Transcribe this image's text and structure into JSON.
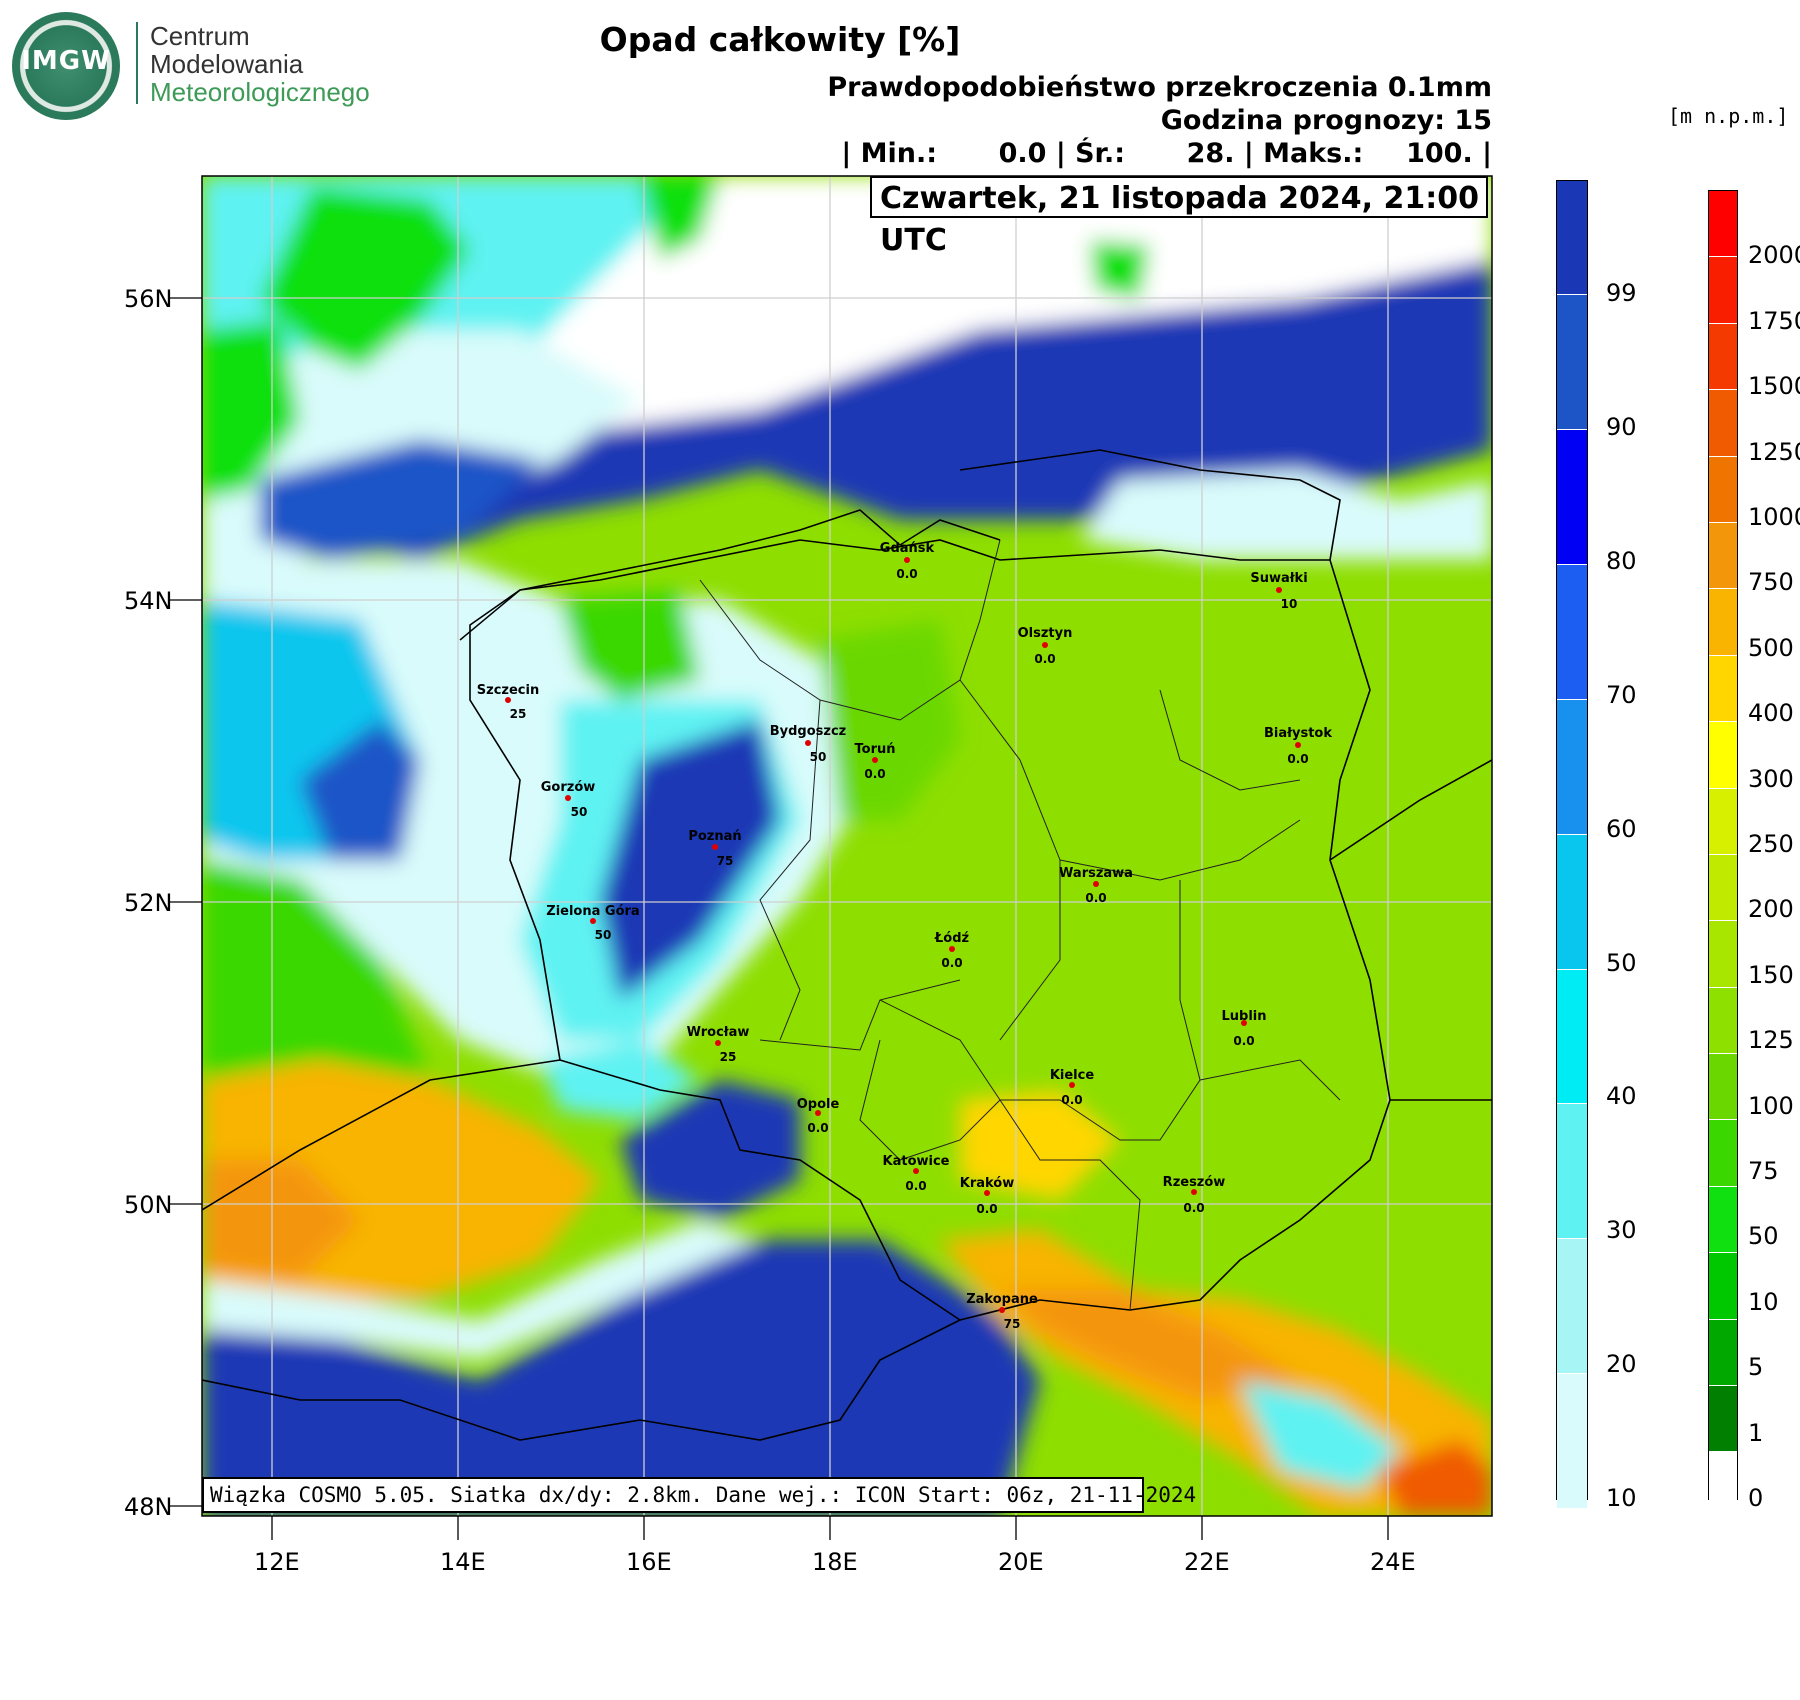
{
  "logo": {
    "inner_text": "IMGW",
    "org_line1": "Centrum",
    "org_line2": "Modelowania",
    "org_line3": "Meteorologicznego"
  },
  "header": {
    "title": "Opad całkowity [%]",
    "line1": "Prawdopodobieństwo przekroczenia 0.1mm",
    "line2": "Godzina prognozy: 15",
    "stats": {
      "min_label": "| Min.:",
      "min_value": "0.0",
      "avg_label": "| Śr.:",
      "avg_value": "28.",
      "max_label": "| Maks.:",
      "max_value": "100.",
      "end": "|"
    },
    "date": "Czwartek, 21 listopada 2024, 21:00 UTC"
  },
  "footer_info": "Wiązka COSMO 5.05. Siatka dx/dy: 2.8km. Dane wej.: ICON Start: 06z, 21-11-2024",
  "axes": {
    "lat_labels": [
      "56N",
      "54N",
      "52N",
      "50N",
      "48N"
    ],
    "lon_labels": [
      "12E",
      "14E",
      "16E",
      "18E",
      "20E",
      "22E",
      "24E"
    ]
  },
  "precip_colorbar": {
    "labels": [
      "99",
      "90",
      "80",
      "70",
      "60",
      "50",
      "40",
      "30",
      "20",
      "10"
    ],
    "colors": [
      "#1a37b5",
      "#1d55c7",
      "#0000f5",
      "#1c5ef2",
      "#1790ee",
      "#08c6ee",
      "#00ecf5",
      "#5ff2f2",
      "#a8f5f5",
      "#d9fbfb"
    ]
  },
  "terrain_colorbar": {
    "unit": "[m n.p.m.]",
    "labels": [
      "2000",
      "1750",
      "1500",
      "1250",
      "1000",
      "750",
      "500",
      "400",
      "300",
      "250",
      "200",
      "150",
      "125",
      "100",
      "75",
      "50",
      "10",
      "5",
      "1",
      "0"
    ],
    "colors": [
      "#ff0000",
      "#fa1e00",
      "#f43a00",
      "#f05a00",
      "#f07400",
      "#f4960a",
      "#f8b400",
      "#ffd600",
      "#ffff00",
      "#d6f000",
      "#c0ea00",
      "#a8e600",
      "#8ee000",
      "#6ad800",
      "#3ad800",
      "#10e010",
      "#00c800",
      "#00a800",
      "#007f00",
      "#ffffff"
    ]
  },
  "cities": [
    {
      "name": "Gdańsk",
      "value": "0.0"
    },
    {
      "name": "Suwałki",
      "value": "10"
    },
    {
      "name": "Olsztyn",
      "value": "0.0"
    },
    {
      "name": "Szczecin",
      "value": "25"
    },
    {
      "name": "Bydgoszcz",
      "value": "50"
    },
    {
      "name": "Toruń",
      "value": "0.0"
    },
    {
      "name": "Białystok",
      "value": "0.0"
    },
    {
      "name": "Gorzów",
      "value": "50"
    },
    {
      "name": "Poznań",
      "value": "75"
    },
    {
      "name": "Warszawa",
      "value": "0.0"
    },
    {
      "name": "Zielona Góra",
      "value": "50"
    },
    {
      "name": "Łódź",
      "value": "0.0"
    },
    {
      "name": "Lublin",
      "value": "0.0"
    },
    {
      "name": "Wrocław",
      "value": "25"
    },
    {
      "name": "Kielce",
      "value": "0.0"
    },
    {
      "name": "Opole",
      "value": "0.0"
    },
    {
      "name": "Katowice",
      "value": "0.0"
    },
    {
      "name": "Kraków",
      "value": "0.0"
    },
    {
      "name": "Rzeszów",
      "value": "0.0"
    },
    {
      "name": "Zakopane",
      "value": "75"
    }
  ]
}
